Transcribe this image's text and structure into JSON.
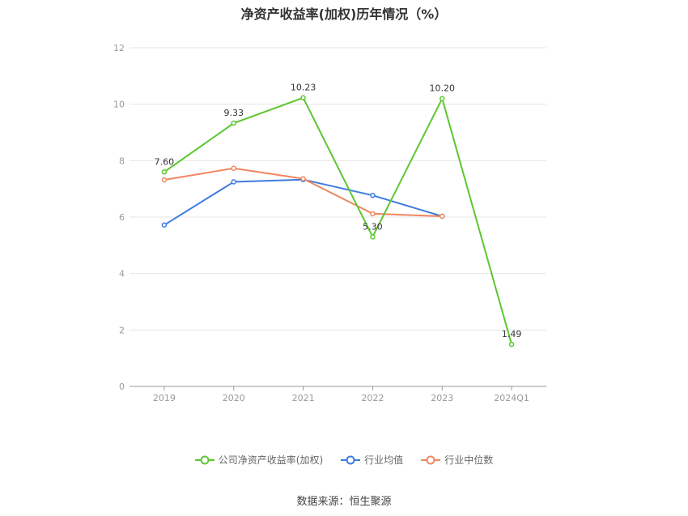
{
  "title": "净资产收益率(加权)历年情况（%）",
  "source": "数据来源：恒生聚源",
  "colors": {
    "company": "#5cc72f",
    "average": "#3f7cde",
    "median": "#f0875f",
    "grid": "#e6e6e6",
    "axis": "#999999"
  },
  "chart_data": {
    "type": "line",
    "categories": [
      "2019",
      "2020",
      "2021",
      "2022",
      "2023",
      "2024Q1"
    ],
    "ylim": [
      0,
      12
    ],
    "yticks": [
      "0",
      "2",
      "4",
      "6",
      "8",
      "10",
      "12"
    ],
    "grid": true,
    "legend_position": "bottom",
    "series": [
      {
        "name": "公司净资产收益率(加权)",
        "key": "company",
        "values": [
          7.6,
          9.33,
          10.23,
          5.3,
          10.2,
          1.49
        ],
        "labels": [
          "7.60",
          "9.33",
          "10.23",
          "5.30",
          "10.20",
          "1.49"
        ]
      },
      {
        "name": "行业均值",
        "key": "average",
        "values": [
          5.72,
          7.25,
          7.33,
          6.77,
          6.03,
          null
        ]
      },
      {
        "name": "行业中位数",
        "key": "median",
        "values": [
          7.32,
          7.73,
          7.36,
          6.12,
          6.03,
          null
        ]
      }
    ]
  }
}
